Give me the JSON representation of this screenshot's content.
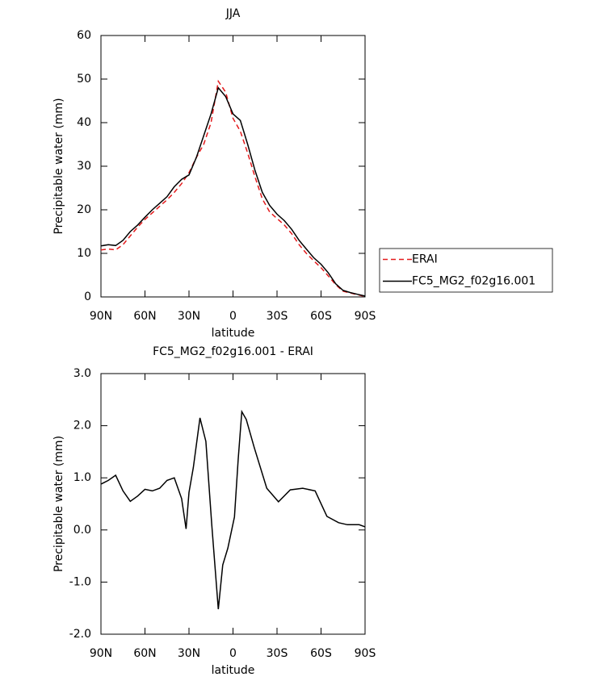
{
  "chart_data": [
    {
      "type": "line",
      "title": "JJA",
      "x_label": "latitude",
      "y_label": "Precipitable water (mm)",
      "xlim": [
        90,
        -90
      ],
      "ylim": [
        0,
        60
      ],
      "xticks": [
        {
          "value": 90,
          "label": "90N"
        },
        {
          "value": 60,
          "label": "60N"
        },
        {
          "value": 30,
          "label": "30N"
        },
        0,
        {
          "value": -30,
          "label": "30S"
        },
        {
          "value": -60,
          "label": "60S"
        },
        {
          "value": -90,
          "label": "90S"
        }
      ],
      "yticks": [
        0,
        10,
        20,
        30,
        40,
        50,
        60
      ],
      "legend": "right",
      "x": [
        90,
        85,
        80,
        75,
        70,
        65,
        60,
        55,
        50,
        45,
        40,
        35,
        30,
        25,
        20,
        15,
        10,
        5,
        0,
        -5,
        -10,
        -15,
        -20,
        -25,
        -30,
        -35,
        -40,
        -45,
        -50,
        -55,
        -60,
        -65,
        -70,
        -75,
        -80,
        -85,
        -90
      ],
      "series": [
        {
          "name": "ERAI",
          "color": "#e41a1c",
          "dashed": true,
          "values": [
            10.8,
            11,
            10.8,
            12,
            14,
            16,
            17.8,
            19.3,
            20.8,
            22.3,
            24,
            26,
            28.5,
            32,
            35,
            40,
            49.5,
            47,
            41,
            38,
            33,
            27.5,
            22.5,
            19.5,
            18,
            16.5,
            14.5,
            12,
            10,
            8.3,
            6.7,
            4.8,
            2.8,
            1.3,
            0.9,
            0.5,
            0.1
          ]
        },
        {
          "name": "FC5_MG2_f02g16.001",
          "color": "#000000",
          "dashed": false,
          "values": [
            11.7,
            12,
            11.8,
            13,
            15,
            16.5,
            18.3,
            20,
            21.5,
            23,
            25.3,
            27,
            28,
            32,
            37,
            42,
            48,
            46,
            42,
            40.5,
            35,
            29,
            24,
            21,
            19,
            17.5,
            15.5,
            13,
            11,
            9,
            7.5,
            5.5,
            3,
            1.5,
            1,
            0.6,
            0.2
          ]
        }
      ]
    },
    {
      "type": "line",
      "title": "FC5_MG2_f02g16.001 - ERAI",
      "x_label": "latitude",
      "y_label": "Precipitable water (mm)",
      "xlim": [
        90,
        -90
      ],
      "ylim": [
        -2,
        3
      ],
      "xticks": [
        {
          "value": 90,
          "label": "90N"
        },
        {
          "value": 60,
          "label": "60N"
        },
        {
          "value": 30,
          "label": "30N"
        },
        0,
        {
          "value": -30,
          "label": "30S"
        },
        {
          "value": -60,
          "label": "60S"
        },
        {
          "value": -90,
          "label": "90S"
        }
      ],
      "yticks": [
        {
          "value": -2,
          "label": "-2.0"
        },
        {
          "value": -1,
          "label": "-1.0"
        },
        {
          "value": 0,
          "label": "0.0"
        },
        {
          "value": 1,
          "label": "1.0"
        },
        {
          "value": 2,
          "label": "2.0"
        },
        {
          "value": 3,
          "label": "3.0"
        }
      ],
      "x": [
        90,
        85,
        80,
        75,
        70,
        65,
        60,
        55,
        50,
        45,
        40,
        35,
        32,
        30,
        27,
        22.5,
        18.5,
        14.5,
        10,
        7,
        3.5,
        -1,
        -3.5,
        -6,
        -9,
        -14.5,
        -23,
        -31,
        -39,
        -47.5,
        -56,
        -64,
        -72,
        -78,
        -86,
        -90
      ],
      "color": "#000000",
      "values": [
        0.88,
        0.95,
        1.05,
        0.75,
        0.55,
        0.65,
        0.78,
        0.75,
        0.8,
        0.95,
        1.0,
        0.6,
        0.02,
        0.72,
        1.2,
        2.15,
        1.7,
        0.1,
        -1.52,
        -0.67,
        -0.35,
        0.25,
        1.35,
        2.27,
        2.12,
        1.58,
        0.8,
        0.54,
        0.77,
        0.8,
        0.75,
        0.26,
        0.14,
        0.1,
        0.1,
        0.06
      ]
    }
  ]
}
